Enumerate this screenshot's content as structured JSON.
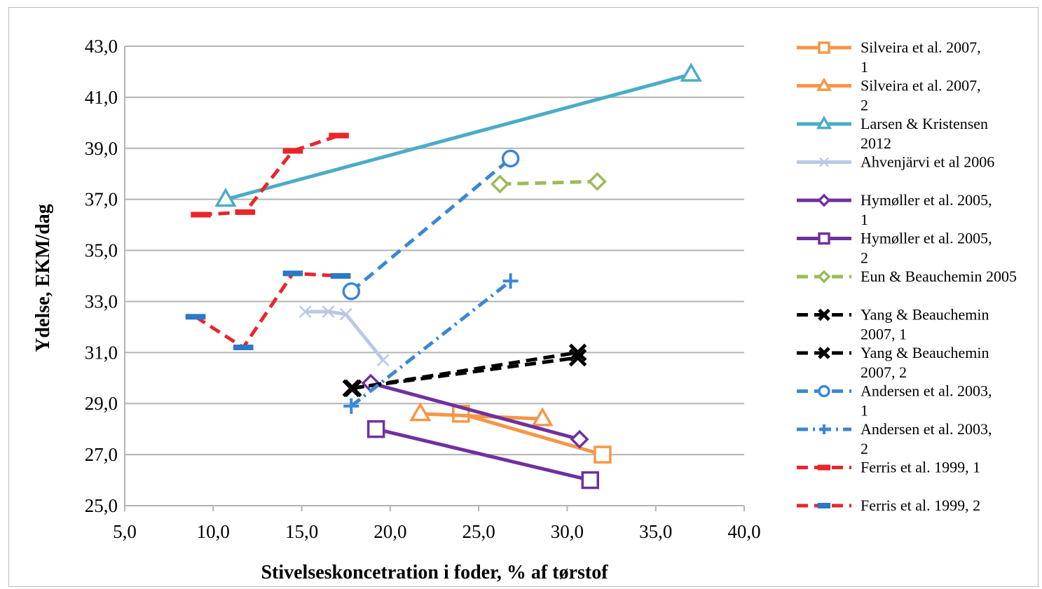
{
  "chart_data": {
    "type": "line",
    "title": "",
    "xlabel": "Stivelseskoncetration i foder, % af tørstof",
    "ylabel": "Ydelse, EKM/dag",
    "xlim": [
      5,
      40
    ],
    "ylim": [
      25,
      43
    ],
    "xticks": [
      "5,0",
      "10,0",
      "15,0",
      "20,0",
      "25,0",
      "30,0",
      "35,0",
      "40,0"
    ],
    "yticks": [
      "25,0",
      "27,0",
      "29,0",
      "31,0",
      "33,0",
      "35,0",
      "37,0",
      "39,0",
      "41,0",
      "43,0"
    ],
    "grid": "horizontal",
    "legend_position": "right",
    "series": [
      {
        "name": "Silveira et al. 2007, 1",
        "color": "#f79646",
        "dash": "solid",
        "marker": "square",
        "x": [
          24.0,
          32.0
        ],
        "y": [
          28.6,
          27.0
        ]
      },
      {
        "name": "Silveira et al. 2007, 2",
        "color": "#f79646",
        "dash": "solid",
        "marker": "triangle",
        "x": [
          21.7,
          28.6
        ],
        "y": [
          28.6,
          28.4
        ]
      },
      {
        "name": "Larsen & Kristensen 2012",
        "color": "#4bacc6",
        "dash": "solid",
        "marker": "triangle",
        "x": [
          10.7,
          37.0
        ],
        "y": [
          37.0,
          41.9
        ]
      },
      {
        "name": "Ahvenjärvi et al 2006",
        "color": "#b9c9e4",
        "dash": "solid",
        "marker": "x",
        "x": [
          15.2,
          16.5,
          17.5,
          19.6
        ],
        "y": [
          32.6,
          32.6,
          32.5,
          30.7
        ]
      },
      {
        "name": "Hymøller et al. 2005, 1",
        "color": "#7030a0",
        "dash": "solid",
        "marker": "diamond",
        "x": [
          18.9,
          30.7
        ],
        "y": [
          29.8,
          27.6
        ]
      },
      {
        "name": "Hymøller et al. 2005, 2",
        "color": "#7030a0",
        "dash": "solid",
        "marker": "square",
        "x": [
          19.2,
          31.3
        ],
        "y": [
          28.0,
          26.0
        ]
      },
      {
        "name": "Eun & Beauchemin 2005",
        "color": "#9bbb59",
        "dash": "dashed",
        "marker": "diamond",
        "x": [
          26.2,
          31.7
        ],
        "y": [
          37.6,
          37.7
        ]
      },
      {
        "name": "Yang & Beauchemin 2007, 1",
        "color": "#000000",
        "dash": "dashed",
        "marker": "xbold",
        "x": [
          17.8,
          30.6
        ],
        "y": [
          29.6,
          30.8
        ]
      },
      {
        "name": "Yang & Beauchemin 2007, 2",
        "color": "#000000",
        "dash": "dashed",
        "marker": "xbold",
        "x": [
          17.9,
          30.6
        ],
        "y": [
          29.6,
          31.0
        ]
      },
      {
        "name": "Andersen et al. 2003, 1",
        "color": "#3a87d6",
        "dash": "dashed",
        "marker": "circle",
        "x": [
          17.8,
          26.8
        ],
        "y": [
          33.4,
          38.6
        ]
      },
      {
        "name": "Andersen et al. 2003, 2",
        "color": "#3a87d6",
        "dash": "dashdot",
        "marker": "plus",
        "x": [
          17.8,
          26.8
        ],
        "y": [
          28.9,
          33.8
        ]
      },
      {
        "name": "Ferris et al. 1999, 1",
        "color": "#e8262a",
        "dash": "dashed",
        "marker": "dash-red",
        "x": [
          9.3,
          11.8,
          14.5,
          17.1
        ],
        "y": [
          36.4,
          36.5,
          38.9,
          39.5
        ]
      },
      {
        "name": "Ferris et al. 1999, 2",
        "color": "#e8262a",
        "dash": "dashed",
        "marker": "dash-blue",
        "x": [
          9.0,
          11.7,
          14.5,
          17.2
        ],
        "y": [
          32.4,
          31.2,
          34.1,
          34.0
        ]
      }
    ]
  }
}
